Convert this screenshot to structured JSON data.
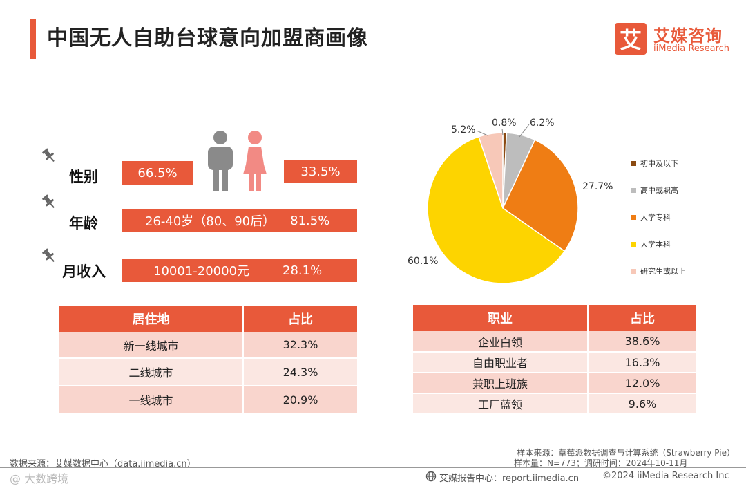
{
  "header": {
    "title": "中国无人自助台球意向加盟商画像"
  },
  "logo": {
    "mark": "艾",
    "name_cn": "艾媒咨询",
    "name_en": "iiMedia Research"
  },
  "profile": {
    "gender": {
      "label": "性别",
      "male": "66.5%",
      "female": "33.5%"
    },
    "age": {
      "label": "年龄",
      "range": "26-40岁（80、90后）",
      "value": "81.5%"
    },
    "income": {
      "label": "月收入",
      "range": "10001-20000元",
      "value": "28.1%"
    }
  },
  "residence_table": {
    "headers": [
      "居住地",
      "占比"
    ],
    "rows": [
      [
        "新一线城市",
        "32.3%"
      ],
      [
        "二线城市",
        "24.3%"
      ],
      [
        "一线城市",
        "20.9%"
      ]
    ]
  },
  "occupation_table": {
    "headers": [
      "职业",
      "占比"
    ],
    "rows": [
      [
        "企业白领",
        "38.6%"
      ],
      [
        "自由职业者",
        "16.3%"
      ],
      [
        "兼职上班族",
        "12.0%"
      ],
      [
        "工厂蓝领",
        "9.6%"
      ]
    ]
  },
  "chart_data": {
    "type": "pie",
    "title": "",
    "categories": [
      "初中及以下",
      "高中或职高",
      "大学专科",
      "大学本科",
      "研究生或以上"
    ],
    "values": [
      0.8,
      6.2,
      27.7,
      60.1,
      5.2
    ],
    "labels": [
      "0.8%",
      "6.2%",
      "27.7%",
      "60.1%",
      "5.2%"
    ],
    "colors": [
      "#8b4a12",
      "#bdbdbd",
      "#ef7d14",
      "#fdd400",
      "#f7c8b8"
    ],
    "legend_position": "right"
  },
  "footer": {
    "source": "数据来源：艾媒数据中心（data.iimedia.cn）",
    "sample_source": "样本来源：草莓派数据调查与计算系统（Strawberry Pie）",
    "sample_size": "样本量：N=773；调研时间：2024年10-11月",
    "report_center": "艾媒报告中心：report.iimedia.cn",
    "copyright": "©2024  iiMedia Research  Inc",
    "watermark": "@ 大数跨境"
  }
}
